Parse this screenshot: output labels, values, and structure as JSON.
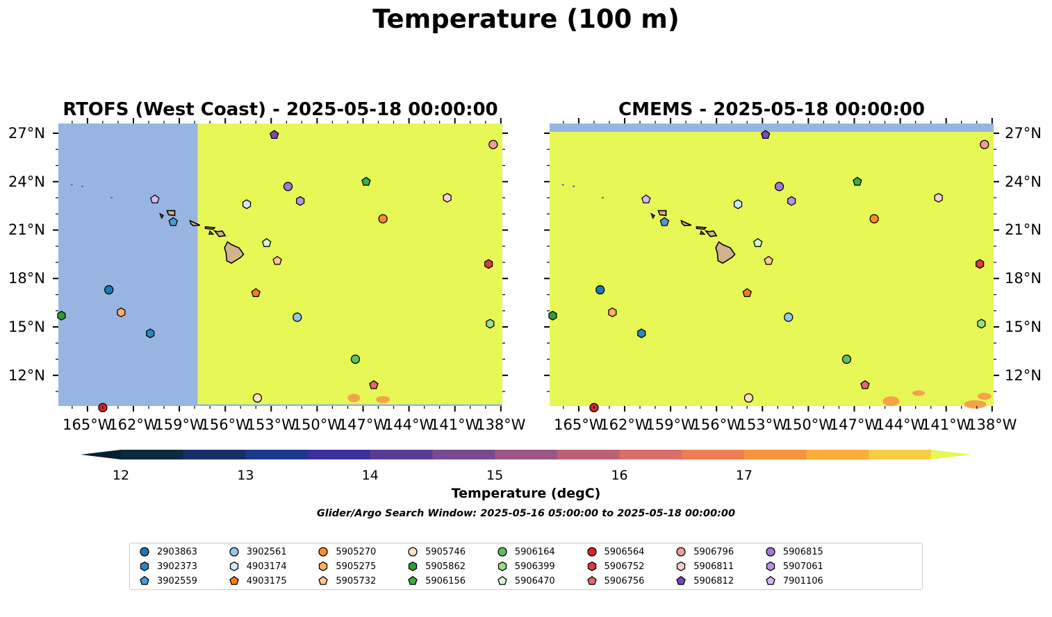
{
  "figure": {
    "suptitle": "Temperature (100 m)",
    "search_window": "Glider/Argo Search Window: 2025-05-16 05:00:00 to 2025-05-18 00:00:00"
  },
  "panels": [
    {
      "title": "RTOFS (West Coast) - 2025-05-18 00:00:00",
      "ytick_side": "left"
    },
    {
      "title": "CMEMS - 2025-05-18 00:00:00",
      "ytick_side": "right"
    }
  ],
  "axes": {
    "xticks": [
      "165°W",
      "162°W",
      "159°W",
      "156°W",
      "153°W",
      "150°W",
      "147°W",
      "144°W",
      "141°W",
      "138°W"
    ],
    "yticks": [
      "27°N",
      "24°N",
      "21°N",
      "18°N",
      "15°N",
      "12°N"
    ]
  },
  "colorbar": {
    "label": "Temperature (degC)",
    "ticks": [
      "12",
      "13",
      "14",
      "15",
      "16",
      "17"
    ],
    "colors": [
      "#0b2a40",
      "#162f6b",
      "#1b3a8a",
      "#3b2f9a",
      "#5a3c96",
      "#7a4a8f",
      "#9a5786",
      "#bb6276",
      "#d86f68",
      "#ee7d52",
      "#f7953e",
      "#fbae38",
      "#f8cd43"
    ],
    "under_color": "#062033",
    "over_color": "#e7f756"
  },
  "map_colors": {
    "land": "#d2b48c",
    "masked": "#97b5e0",
    "warm": "#e7f756",
    "warm_patch": "#f5a349"
  },
  "legend": {
    "items": [
      {
        "id": "2903863",
        "marker": "circle",
        "color": "#1f77b4"
      },
      {
        "id": "3902373",
        "marker": "hexagon",
        "color": "#2f86c1"
      },
      {
        "id": "3902559",
        "marker": "pentagon",
        "color": "#4c9bd4"
      },
      {
        "id": "3902561",
        "marker": "circle",
        "color": "#8fc7ea"
      },
      {
        "id": "4903174",
        "marker": "hexagon",
        "color": "#cfe8fa"
      },
      {
        "id": "4903175",
        "marker": "pentagon",
        "color": "#ff7f0e"
      },
      {
        "id": "5905270",
        "marker": "circle",
        "color": "#ff8c2a"
      },
      {
        "id": "5905275",
        "marker": "hexagon",
        "color": "#ffae62"
      },
      {
        "id": "5905732",
        "marker": "pentagon",
        "color": "#ffc690"
      },
      {
        "id": "5905746",
        "marker": "circle",
        "color": "#ffe3c8"
      },
      {
        "id": "5905862",
        "marker": "hexagon",
        "color": "#2ca02c"
      },
      {
        "id": "5906156",
        "marker": "pentagon",
        "color": "#3cb03c"
      },
      {
        "id": "5906164",
        "marker": "circle",
        "color": "#5fc25f"
      },
      {
        "id": "5906399",
        "marker": "hexagon",
        "color": "#98df8a"
      },
      {
        "id": "5906470",
        "marker": "pentagon",
        "color": "#d3f7d0"
      },
      {
        "id": "5906564",
        "marker": "circle",
        "color": "#d62728"
      },
      {
        "id": "5906752",
        "marker": "hexagon",
        "color": "#dc3b40"
      },
      {
        "id": "5906756",
        "marker": "pentagon",
        "color": "#e5676b"
      },
      {
        "id": "5906796",
        "marker": "circle",
        "color": "#f19b9b"
      },
      {
        "id": "5906811",
        "marker": "hexagon",
        "color": "#fccfcf"
      },
      {
        "id": "5906812",
        "marker": "pentagon",
        "color": "#7b4bbd"
      },
      {
        "id": "5906815",
        "marker": "circle",
        "color": "#a07ad6"
      },
      {
        "id": "5907061",
        "marker": "hexagon",
        "color": "#b493e0"
      },
      {
        "id": "7901106",
        "marker": "pentagon",
        "color": "#d5b8f2"
      }
    ]
  },
  "map_data": {
    "lon_range": [
      -166.9,
      -137.9
    ],
    "lat_range": [
      10.1,
      27.6
    ],
    "floats": [
      {
        "id": "2903863",
        "lon": -163.6,
        "lat": 17.3
      },
      {
        "id": "3902373",
        "lon": -160.9,
        "lat": 14.6
      },
      {
        "id": "3902559",
        "lon": -159.4,
        "lat": 21.5
      },
      {
        "id": "3902561",
        "lon": -151.3,
        "lat": 15.6
      },
      {
        "id": "4903174",
        "lon": -154.6,
        "lat": 22.6
      },
      {
        "id": "4903175",
        "lon": -154.0,
        "lat": 17.1
      },
      {
        "id": "5905270",
        "lon": -145.7,
        "lat": 21.7
      },
      {
        "id": "5905275",
        "lon": -162.8,
        "lat": 15.9
      },
      {
        "id": "5905732",
        "lon": -152.6,
        "lat": 19.1
      },
      {
        "id": "5905746",
        "lon": -153.9,
        "lat": 10.6
      },
      {
        "id": "5905862",
        "lon": -166.7,
        "lat": 15.7
      },
      {
        "id": "5906156",
        "lon": -146.8,
        "lat": 24.0
      },
      {
        "id": "5906164",
        "lon": -147.5,
        "lat": 13.0
      },
      {
        "id": "5906399",
        "lon": -138.7,
        "lat": 15.2
      },
      {
        "id": "5906470",
        "lon": -153.3,
        "lat": 20.2
      },
      {
        "id": "5906564",
        "lon": -164.0,
        "lat": 10.0
      },
      {
        "id": "5906752",
        "lon": -138.8,
        "lat": 18.9
      },
      {
        "id": "5906756",
        "lon": -146.3,
        "lat": 11.4
      },
      {
        "id": "5906796",
        "lon": -138.5,
        "lat": 26.3
      },
      {
        "id": "5906811",
        "lon": -141.5,
        "lat": 23.0
      },
      {
        "id": "5906812",
        "lon": -152.8,
        "lat": 26.9
      },
      {
        "id": "5906815",
        "lon": -151.9,
        "lat": 23.7
      },
      {
        "id": "5907061",
        "lon": -151.1,
        "lat": 22.8
      },
      {
        "id": "7901106",
        "lon": -160.6,
        "lat": 22.9
      }
    ],
    "rtofs_mask_edge_lon": -157.8
  }
}
